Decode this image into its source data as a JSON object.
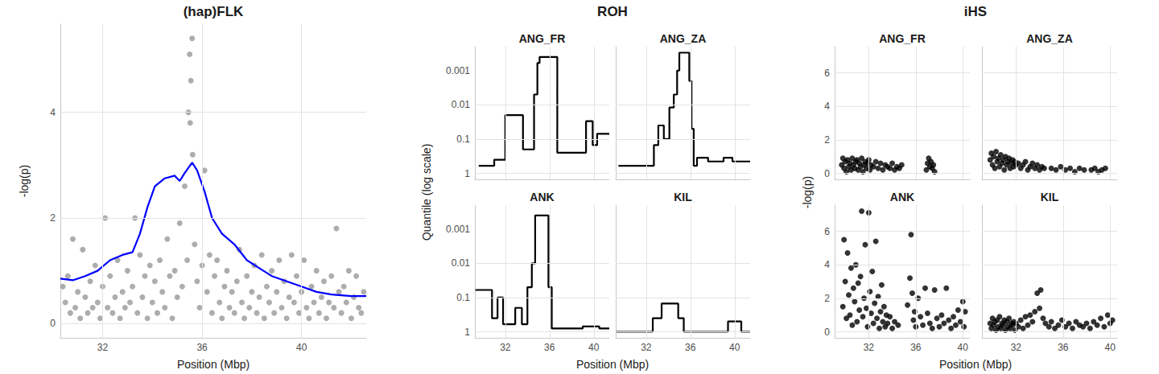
{
  "chart_data": [
    {
      "type": "scatter",
      "title": "(hap)FLK",
      "x_label": "Position (Mbp)",
      "y_label": "-log(p)",
      "xlim": [
        30.3,
        42.6
      ],
      "xticks": [
        32,
        36,
        40
      ],
      "ylim": [
        -0.27,
        5.67
      ],
      "yticks": [
        0,
        2,
        4
      ],
      "grid": true,
      "series": [
        {
          "type": "scatter",
          "color": "#999999",
          "x": [
            30.4,
            30.5,
            30.6,
            30.7,
            30.8,
            30.9,
            31.0,
            31.1,
            31.2,
            31.3,
            31.4,
            31.5,
            31.6,
            31.7,
            31.8,
            31.9,
            32.0,
            32.1,
            32.2,
            32.3,
            32.4,
            32.5,
            32.6,
            32.7,
            32.8,
            32.9,
            33.0,
            33.1,
            33.2,
            33.3,
            33.4,
            33.5,
            33.6,
            33.7,
            33.8,
            33.9,
            34.0,
            34.1,
            34.2,
            34.3,
            34.4,
            34.5,
            34.6,
            34.7,
            34.8,
            34.9,
            35.0,
            35.1,
            35.2,
            35.3,
            35.4,
            35.5,
            35.6,
            35.7,
            35.8,
            35.9,
            36.0,
            36.1,
            36.2,
            36.3,
            36.4,
            36.5,
            36.6,
            36.7,
            36.8,
            36.9,
            37.0,
            37.1,
            37.2,
            37.3,
            37.4,
            37.5,
            37.6,
            37.7,
            37.8,
            37.9,
            38.0,
            38.1,
            38.2,
            38.3,
            38.4,
            38.5,
            38.6,
            38.7,
            38.8,
            38.9,
            39.0,
            39.1,
            39.2,
            39.3,
            39.4,
            39.5,
            39.6,
            39.7,
            39.8,
            39.9,
            40.0,
            40.1,
            40.2,
            40.3,
            40.4,
            40.5,
            40.6,
            40.7,
            40.8,
            40.9,
            41.0,
            41.1,
            41.2,
            41.3,
            41.4,
            41.5,
            41.6,
            41.7,
            41.8,
            41.9,
            42.0,
            42.1,
            42.2,
            42.3,
            42.4,
            42.5,
            35.45,
            35.52,
            35.55,
            35.62
          ],
          "values": [
            0.7,
            0.4,
            0.9,
            0.2,
            1.6,
            0.3,
            0.6,
            0.1,
            1.4,
            0.5,
            0.2,
            0.8,
            0.3,
            1.1,
            0.4,
            0.1,
            0.7,
            2.0,
            0.3,
            0.9,
            0.2,
            0.5,
            1.2,
            0.1,
            0.6,
            0.3,
            1.0,
            0.4,
            0.7,
            2.0,
            0.2,
            1.3,
            0.5,
            0.9,
            0.1,
            1.1,
            0.4,
            0.8,
            0.2,
            1.2,
            0.6,
            0.3,
            1.6,
            0.9,
            0.1,
            1.0,
            0.5,
            1.9,
            0.7,
            2.6,
            1.2,
            5.1,
            5.4,
            1.5,
            0.8,
            0.3,
            1.1,
            2.9,
            0.6,
            1.3,
            0.2,
            0.9,
            1.2,
            0.4,
            0.1,
            0.7,
            1.0,
            0.3,
            0.6,
            0.2,
            0.8,
            1.4,
            0.4,
            0.1,
            0.9,
            0.3,
            0.6,
            1.1,
            0.2,
            0.5,
            1.3,
            0.1,
            0.7,
            0.4,
            1.0,
            0.2,
            0.6,
            1.2,
            0.3,
            0.8,
            0.1,
            0.5,
            1.3,
            0.4,
            0.9,
            0.2,
            0.6,
            1.2,
            0.3,
            0.1,
            0.7,
            0.4,
            1.0,
            0.2,
            0.5,
            0.8,
            0.1,
            0.4,
            0.9,
            0.3,
            1.8,
            0.6,
            0.2,
            0.7,
            0.4,
            1.0,
            0.1,
            0.5,
            0.9,
            0.3,
            0.2,
            0.6,
            4.0,
            3.8,
            4.6,
            3.2
          ]
        },
        {
          "type": "line",
          "color": "#0000ff",
          "x": [
            30.3,
            30.8,
            31.3,
            31.8,
            32.3,
            32.8,
            33.2,
            33.5,
            33.8,
            34.1,
            34.5,
            34.9,
            35.1,
            35.3,
            35.6,
            35.8,
            36.1,
            36.4,
            36.8,
            37.3,
            37.8,
            38.3,
            38.8,
            39.4,
            40.0,
            40.6,
            41.2,
            42.0,
            42.6
          ],
          "values": [
            0.85,
            0.82,
            0.9,
            1.0,
            1.2,
            1.3,
            1.35,
            1.7,
            2.2,
            2.6,
            2.75,
            2.8,
            2.7,
            2.85,
            3.05,
            2.9,
            2.5,
            2.0,
            1.7,
            1.5,
            1.2,
            1.05,
            0.9,
            0.8,
            0.7,
            0.6,
            0.55,
            0.52,
            0.52
          ]
        }
      ]
    },
    {
      "type": "line",
      "title": "ROH",
      "x_label": "Position (Mbp)",
      "y_label": "Quantile (log scale)",
      "log": "y",
      "line_style": "step",
      "grid": true,
      "xlim": [
        29.25,
        41.4
      ],
      "xticks": [
        32,
        36,
        40
      ],
      "ylim": [
        1.5,
        0.0002
      ],
      "yticks": [
        1,
        0.1,
        0.01,
        0.001
      ],
      "facets": [
        {
          "title": "ANG_FR",
          "color": "#000000",
          "x": [
            29.6,
            31.0,
            32.0,
            33.6,
            34.6,
            34.9,
            35.1,
            36.7,
            37.1,
            39.3,
            39.9,
            40.3,
            41.4
          ],
          "values": [
            0.6,
            0.4,
            0.02,
            0.2,
            0.005,
            0.0006,
            0.0004,
            0.25,
            0.25,
            0.03,
            0.15,
            0.07,
            0.07
          ]
        },
        {
          "title": "ANG_ZA",
          "color": "#000000",
          "x": [
            29.5,
            32.7,
            33.1,
            33.6,
            34.1,
            34.5,
            34.8,
            35.0,
            35.9,
            36.1,
            36.3,
            36.6,
            37.6,
            39.0,
            39.8,
            41.4
          ],
          "values": [
            0.6,
            0.15,
            0.04,
            0.1,
            0.012,
            0.005,
            0.001,
            0.0003,
            0.002,
            0.05,
            0.6,
            0.35,
            0.45,
            0.35,
            0.45,
            0.45
          ]
        },
        {
          "title": "ANK",
          "color": "#000000",
          "x": [
            29.3,
            30.8,
            31.3,
            31.8,
            32.9,
            33.5,
            34.0,
            34.4,
            34.7,
            35.9,
            36.2,
            36.5,
            39.0,
            40.5,
            41.4
          ],
          "values": [
            0.06,
            0.4,
            0.1,
            0.6,
            0.2,
            0.6,
            0.05,
            0.01,
            0.0004,
            0.05,
            0.8,
            0.8,
            0.7,
            0.8,
            0.8
          ]
        },
        {
          "title": "KIL",
          "color": "#000000",
          "x": [
            29.3,
            32.6,
            33.4,
            34.9,
            35.4,
            39.4,
            40.6,
            41.4
          ],
          "values": [
            1,
            0.4,
            0.15,
            0.4,
            1,
            0.5,
            1,
            1
          ]
        }
      ]
    },
    {
      "type": "scatter",
      "title": "iHS",
      "x_label": "Position (Mbp)",
      "y_label": "-log(p)",
      "grid": true,
      "xlim": [
        29.1,
        40.6
      ],
      "xticks": [
        32,
        36,
        40
      ],
      "ylim": [
        -0.36,
        7.56
      ],
      "yticks": [
        0,
        2,
        4,
        6
      ],
      "facets": [
        {
          "title": "ANG_FR",
          "color": "#000000",
          "x": [
            29.7,
            29.8,
            29.9,
            30.0,
            30.1,
            30.2,
            30.3,
            30.4,
            30.5,
            30.6,
            30.7,
            30.8,
            30.9,
            31.0,
            31.1,
            31.2,
            31.3,
            31.4,
            31.5,
            31.6,
            31.7,
            31.8,
            31.9,
            32.0,
            32.1,
            32.2,
            32.4,
            32.6,
            32.8,
            33.0,
            33.2,
            33.4,
            33.6,
            33.8,
            34.0,
            34.2,
            34.4,
            34.6,
            34.8,
            36.9,
            37.0,
            37.1,
            37.2,
            37.3,
            37.4,
            37.5,
            37.6
          ],
          "values": [
            0.5,
            0.9,
            0.3,
            0.7,
            0.1,
            0.8,
            0.4,
            0.6,
            0.2,
            0.9,
            0.5,
            0.3,
            0.7,
            0.8,
            0.2,
            0.6,
            0.4,
            0.9,
            0.1,
            0.5,
            0.7,
            0.3,
            0.6,
            0.8,
            0.2,
            0.5,
            0.4,
            0.7,
            0.3,
            0.6,
            0.2,
            0.5,
            0.4,
            0.3,
            0.6,
            0.2,
            0.4,
            0.3,
            0.5,
            0.2,
            0.6,
            0.9,
            0.4,
            0.7,
            0.3,
            0.5,
            0.1
          ]
        },
        {
          "title": "ANG_ZA",
          "color": "#000000",
          "x": [
            29.8,
            29.9,
            30.0,
            30.1,
            30.2,
            30.3,
            30.4,
            30.5,
            30.6,
            30.7,
            30.8,
            30.9,
            31.0,
            31.1,
            31.2,
            31.3,
            31.4,
            31.5,
            31.6,
            31.7,
            31.8,
            31.9,
            32.0,
            32.2,
            32.4,
            32.6,
            32.8,
            33.0,
            33.2,
            33.4,
            33.6,
            33.8,
            34.0,
            34.2,
            34.4,
            35.0,
            35.4,
            35.8,
            36.2,
            36.6,
            37.0,
            37.4,
            37.8,
            38.4,
            38.7,
            39.0,
            39.3,
            39.6
          ],
          "values": [
            0.8,
            1.2,
            0.5,
            1.0,
            0.3,
            1.3,
            0.7,
            0.9,
            0.4,
            1.1,
            0.6,
            0.8,
            0.2,
            1.0,
            0.5,
            0.7,
            0.9,
            0.3,
            0.6,
            0.8,
            0.4,
            0.7,
            0.5,
            0.6,
            0.3,
            0.5,
            0.7,
            0.2,
            0.4,
            0.6,
            0.3,
            0.5,
            0.2,
            0.4,
            0.3,
            0.3,
            0.2,
            0.4,
            0.2,
            0.3,
            0.1,
            0.3,
            0.2,
            0.2,
            0.3,
            0.1,
            0.2,
            0.3
          ]
        },
        {
          "title": "ANK",
          "color": "#000000",
          "x": [
            29.8,
            29.9,
            30.0,
            30.1,
            30.2,
            30.3,
            30.4,
            30.5,
            30.6,
            30.7,
            30.8,
            30.9,
            31.0,
            31.1,
            31.2,
            31.3,
            31.4,
            31.5,
            31.6,
            31.7,
            31.8,
            31.9,
            32.0,
            32.1,
            32.2,
            32.3,
            32.4,
            32.5,
            32.6,
            32.7,
            32.8,
            32.9,
            33.0,
            33.1,
            33.2,
            33.3,
            33.4,
            33.5,
            33.6,
            33.8,
            34.0,
            34.2,
            34.5,
            35.3,
            35.5,
            35.6,
            35.7,
            35.8,
            35.9,
            36.0,
            36.2,
            36.4,
            36.6,
            36.8,
            37.0,
            37.2,
            37.4,
            37.6,
            37.8,
            38.0,
            38.2,
            38.4,
            38.6,
            38.8,
            39.0,
            39.2,
            39.4,
            39.6,
            39.8,
            40.0,
            40.1,
            40.2
          ],
          "values": [
            1.5,
            5.5,
            3.0,
            0.8,
            4.7,
            2.2,
            1.0,
            3.8,
            0.4,
            2.6,
            1.8,
            4.0,
            0.6,
            2.9,
            1.3,
            3.3,
            7.2,
            0.9,
            2.0,
            5.2,
            1.4,
            0.3,
            7.1,
            2.4,
            1.1,
            3.6,
            0.5,
            1.7,
            5.4,
            0.8,
            2.1,
            0.2,
            1.2,
            2.8,
            0.6,
            1.5,
            0.3,
            1.0,
            0.5,
            0.9,
            0.2,
            0.6,
            0.4,
            1.6,
            3.2,
            5.8,
            2.3,
            0.7,
            1.2,
            0.3,
            2.0,
            0.9,
            0.4,
            2.6,
            1.1,
            0.5,
            0.2,
            2.5,
            0.8,
            0.3,
            1.0,
            0.5,
            2.6,
            0.7,
            0.2,
            0.9,
            0.4,
            1.3,
            0.6,
            1.8,
            0.3,
            1.2
          ]
        },
        {
          "title": "KIL",
          "color": "#000000",
          "x": [
            29.8,
            29.9,
            30.0,
            30.1,
            30.2,
            30.3,
            30.4,
            30.5,
            30.6,
            30.7,
            30.8,
            30.9,
            31.0,
            31.1,
            31.2,
            31.3,
            31.4,
            31.5,
            31.6,
            31.7,
            31.8,
            31.9,
            32.0,
            32.2,
            32.4,
            32.6,
            32.8,
            33.0,
            33.2,
            33.4,
            33.6,
            33.8,
            34.0,
            34.1,
            34.3,
            34.5,
            34.8,
            35.0,
            35.3,
            35.6,
            35.9,
            36.2,
            36.5,
            36.8,
            37.1,
            37.4,
            37.7,
            38.0,
            38.3,
            38.6,
            38.9,
            39.2,
            39.5,
            39.8,
            40.0,
            40.2
          ],
          "values": [
            0.5,
            0.2,
            0.8,
            0.4,
            0.6,
            0.1,
            0.7,
            0.3,
            0.9,
            0.2,
            0.5,
            0.4,
            0.7,
            0.1,
            0.6,
            0.3,
            0.8,
            0.2,
            0.5,
            0.4,
            0.6,
            0.1,
            0.5,
            0.3,
            0.7,
            0.2,
            0.9,
            0.4,
            1.0,
            0.6,
            1.2,
            2.3,
            1.4,
            2.5,
            0.8,
            0.5,
            0.3,
            0.6,
            0.2,
            0.4,
            0.7,
            0.3,
            0.5,
            0.2,
            0.6,
            0.4,
            0.3,
            0.5,
            0.2,
            0.6,
            0.4,
            0.8,
            0.3,
            1.0,
            0.5,
            0.7
          ]
        }
      ]
    }
  ]
}
